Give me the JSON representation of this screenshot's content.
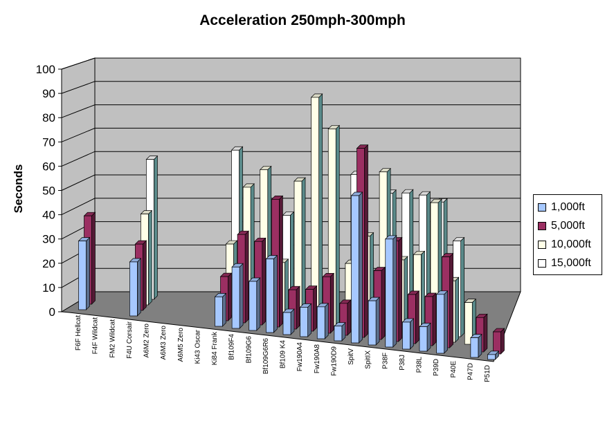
{
  "chart_data": {
    "type": "bar",
    "title": "Acceleration 250mph-300mph",
    "xlabel": "",
    "ylabel": "Seconds",
    "ylim": [
      0,
      100
    ],
    "yticks": [
      0,
      10,
      20,
      30,
      40,
      50,
      60,
      70,
      80,
      90,
      100
    ],
    "grid": true,
    "legend_position": "right",
    "categories": [
      "F6F Hellcat",
      "F4F Wildcat",
      "FM2 Wildcat",
      "F4U Corsair",
      "A6M2 Zero",
      "A6M3 Zero",
      "A6M5 Zero",
      "Ki43 Oscar",
      "Ki84 Frank",
      "Bf109F4",
      "Bf109G6",
      "Bf109G6R6",
      "Bf109 K4",
      "Fw190A4",
      "Fw190A8",
      "Fw190D9",
      "SpitV",
      "SpitIX",
      "P38F",
      "P38J",
      "P38L",
      "P39D",
      "P40E",
      "P47D",
      "P51D"
    ],
    "series": [
      {
        "name": "1,000ft",
        "color": "#a6c8ff",
        "values": [
          28,
          null,
          null,
          22,
          null,
          null,
          null,
          null,
          12,
          25,
          20,
          30,
          9,
          12,
          13,
          6,
          60,
          18,
          44,
          11,
          10,
          24,
          null,
          8,
          2
        ]
      },
      {
        "name": "5,000ft",
        "color": "#9b2f62",
        "values": [
          36,
          null,
          null,
          27,
          null,
          null,
          null,
          null,
          18,
          36,
          34,
          52,
          16,
          17,
          23,
          13,
          77,
          28,
          41,
          20,
          20,
          37,
          null,
          14,
          9
        ]
      },
      {
        "name": "10,000ft",
        "color": "#ffffe8",
        "values": [
          null,
          null,
          null,
          37,
          null,
          null,
          null,
          null,
          29,
          53,
          61,
          24,
          58,
          93,
          81,
          27,
          39,
          66,
          31,
          34,
          56,
          25,
          17,
          null,
          null
        ]
      },
      {
        "name": "15,000ft",
        "color": "#ffffff",
        "values": [
          null,
          null,
          null,
          57,
          null,
          null,
          null,
          null,
          65,
          null,
          null,
          41,
          null,
          null,
          null,
          61,
          null,
          55,
          56,
          56,
          54,
          39,
          null,
          null,
          null
        ]
      }
    ]
  }
}
